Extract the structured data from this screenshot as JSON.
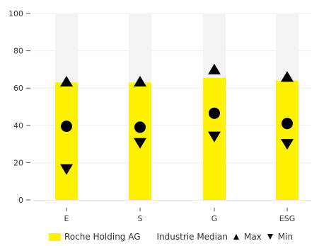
{
  "chart_data": {
    "type": "bar",
    "categories": [
      "E",
      "S",
      "G",
      "ESG"
    ],
    "ylim": [
      0,
      100
    ],
    "yticks": [
      0,
      20,
      40,
      60,
      80,
      100
    ],
    "grid": true,
    "legend_position": "bottom",
    "series": [
      {
        "name": "Roche Holding AG",
        "kind": "bar",
        "values": [
          63,
          63,
          65.5,
          64
        ],
        "color": "#fff200"
      },
      {
        "name": "Industrie Median",
        "kind": "marker-circle",
        "values": [
          39.5,
          39,
          46.5,
          41
        ],
        "color": "#000000"
      },
      {
        "name": "Max",
        "kind": "marker-triangle-up",
        "values": [
          63.5,
          63.5,
          70,
          66
        ],
        "color": "#000000"
      },
      {
        "name": "Min",
        "kind": "marker-triangle-down",
        "values": [
          16.5,
          30.5,
          34,
          30
        ],
        "color": "#000000"
      }
    ],
    "background_track_color": "#f3f3f3",
    "axis_color": "#555555"
  }
}
